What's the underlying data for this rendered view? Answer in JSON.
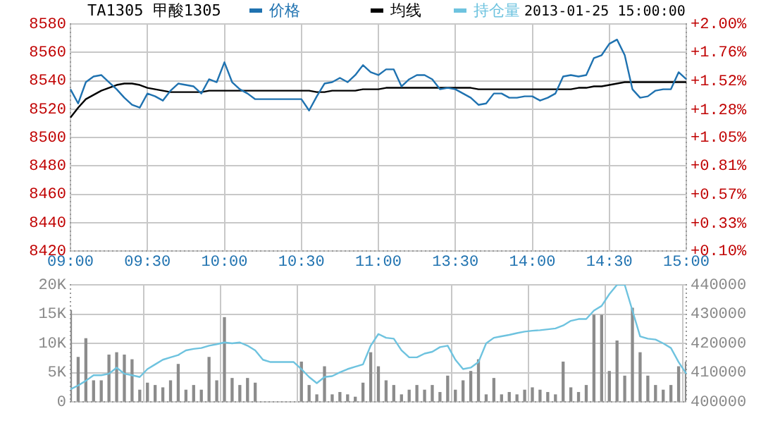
{
  "chart_data": [
    {
      "type": "line",
      "title": "TA1305 甲酸1305",
      "annotations": [
        "2013-01-25 15:00:00"
      ],
      "categories": [
        "09:00",
        null,
        null,
        null,
        null,
        null,
        null,
        null,
        null,
        null,
        "09:30",
        null,
        null,
        null,
        null,
        null,
        null,
        null,
        null,
        null,
        "10:00",
        null,
        null,
        null,
        null,
        null,
        null,
        null,
        null,
        null,
        "10:30",
        null,
        null,
        null,
        null,
        null,
        null,
        null,
        null,
        null,
        "11:00",
        null,
        null,
        null,
        null,
        null,
        null,
        null,
        null,
        null,
        "13:30",
        null,
        null,
        null,
        null,
        null,
        null,
        null,
        null,
        null,
        "14:00",
        null,
        null,
        null,
        null,
        null,
        null,
        null,
        null,
        null,
        "14:30",
        null,
        null,
        null,
        null,
        null,
        null,
        null,
        null,
        null,
        "15:00"
      ],
      "series": [
        {
          "name": "价格",
          "color": "#1f72b0",
          "values": [
            8534,
            8524,
            8539,
            8543,
            8544,
            8539,
            8534,
            8528,
            8523,
            8521,
            8531,
            8529,
            8526,
            8533,
            8538,
            8537,
            8536,
            8531,
            8541,
            8539,
            8553,
            8539,
            8534,
            8531,
            8527,
            8527,
            8527,
            8527,
            8527,
            8527,
            8527,
            8519,
            8529,
            8538,
            8539,
            8542,
            8539,
            8544,
            8551,
            8546,
            8544,
            8548,
            8548,
            8536,
            8541,
            8544,
            8544,
            8541,
            8534,
            8535,
            8534,
            8531,
            8528,
            8523,
            8524,
            8531,
            8531,
            8528,
            8528,
            8529,
            8529,
            8526,
            8528,
            8531,
            8543,
            8544,
            8543,
            8544,
            8556,
            8558,
            8566,
            8569,
            8558,
            8534,
            8528,
            8529,
            8533,
            8534,
            8534,
            8546,
            8541
          ]
        },
        {
          "name": "均线",
          "color": "#000000",
          "values": [
            8514,
            8521,
            8527,
            8530,
            8533,
            8535,
            8537,
            8538,
            8538,
            8537,
            8535,
            8534,
            8533,
            8532,
            8532,
            8532,
            8532,
            8532,
            8533,
            8533,
            8533,
            8533,
            8533,
            8533,
            8533,
            8533,
            8533,
            8533,
            8533,
            8533,
            8533,
            8533,
            8532,
            8532,
            8533,
            8533,
            8533,
            8533,
            8534,
            8534,
            8534,
            8535,
            8535,
            8535,
            8535,
            8535,
            8535,
            8535,
            8535,
            8535,
            8535,
            8535,
            8535,
            8534,
            8534,
            8534,
            8534,
            8534,
            8534,
            8534,
            8534,
            8534,
            8534,
            8534,
            8534,
            8534,
            8535,
            8535,
            8536,
            8536,
            8537,
            8538,
            8539,
            8539,
            8539,
            8539,
            8539,
            8539,
            8539,
            8539,
            8539
          ]
        }
      ],
      "ylim": [
        8420,
        8580
      ],
      "yticks": [
        8420,
        8440,
        8460,
        8480,
        8500,
        8520,
        8540,
        8560,
        8580
      ],
      "y2lim": [
        0.1,
        2.0
      ],
      "y2ticks": [
        {
          "value": 0.1,
          "label": "+0.10%"
        },
        {
          "value": 0.33,
          "label": "+0.33%"
        },
        {
          "value": 0.57,
          "label": "+0.57%"
        },
        {
          "value": 0.81,
          "label": "+0.81%"
        },
        {
          "value": 1.05,
          "label": "+1.05%"
        },
        {
          "value": 1.28,
          "label": "+1.28%"
        },
        {
          "value": 1.52,
          "label": "+1.52%"
        },
        {
          "value": 1.76,
          "label": "+1.76%"
        },
        {
          "value": 2.0,
          "label": "+2.00%"
        }
      ],
      "grid": true,
      "legend": "top"
    },
    {
      "type": "bar",
      "tick_labels": "y",
      "categories": [
        null,
        null,
        null,
        null,
        null,
        null,
        null,
        null,
        null,
        null,
        null,
        null,
        null,
        null,
        null,
        null,
        null,
        null,
        null,
        null,
        null,
        null,
        null,
        null,
        null,
        null,
        null,
        null,
        null,
        null,
        null,
        null,
        null,
        null,
        null,
        null,
        null,
        null,
        null,
        null,
        null,
        null,
        null,
        null,
        null,
        null,
        null,
        null,
        null,
        null,
        null,
        null,
        null,
        null,
        null,
        null,
        null,
        null,
        null,
        null,
        null,
        null,
        null,
        null,
        null,
        null,
        null,
        null,
        null,
        null,
        null,
        null,
        null,
        null,
        null,
        null,
        null,
        null,
        null,
        null,
        null
      ],
      "series": [
        {
          "color": "#8c8c8c",
          "values": [
            15600,
            7600,
            10800,
            3600,
            3600,
            8000,
            8400,
            8000,
            7200,
            2000,
            3200,
            2800,
            2400,
            3600,
            6400,
            2000,
            2800,
            2000,
            7600,
            3600,
            14400,
            4000,
            2800,
            4000,
            3200,
            null,
            null,
            null,
            null,
            null,
            6800,
            2800,
            1200,
            6000,
            1200,
            1600,
            1200,
            800,
            3200,
            8400,
            6000,
            3600,
            2800,
            1200,
            2000,
            2800,
            2000,
            2800,
            1600,
            4400,
            2000,
            3600,
            5200,
            7200,
            1200,
            4000,
            1200,
            1600,
            1200,
            2000,
            2400,
            2000,
            1600,
            1200,
            6800,
            2400,
            1600,
            2800,
            14800,
            14800,
            5200,
            10400,
            4400,
            16000,
            8400,
            4400,
            2800,
            2000,
            2800,
            6000,
            6800
          ]
        },
        {
          "name": "持仓量",
          "type": "line",
          "axis": "y2",
          "color": "#6ec3df",
          "values": [
            404300,
            405600,
            407200,
            409100,
            409100,
            409600,
            411700,
            409600,
            409100,
            408500,
            411200,
            412800,
            414400,
            415200,
            416000,
            417600,
            418100,
            418400,
            419200,
            419700,
            420300,
            420000,
            420300,
            419200,
            417600,
            414400,
            413600,
            413600,
            413600,
            413600,
            411200,
            408500,
            406400,
            408500,
            408800,
            410100,
            411200,
            412000,
            412800,
            419200,
            423200,
            421900,
            421600,
            417600,
            415200,
            415200,
            416500,
            417100,
            418700,
            419200,
            414400,
            411200,
            411700,
            413600,
            420000,
            421900,
            422400,
            422900,
            423500,
            424000,
            424300,
            424500,
            424800,
            425100,
            426100,
            427700,
            428300,
            428300,
            431200,
            432800,
            436800,
            440000,
            440000,
            431200,
            422400,
            421600,
            421300,
            420000,
            418400,
            413600,
            409600
          ]
        }
      ],
      "ylim": [
        0,
        20000
      ],
      "yticks": [
        0,
        {
          "value": 5000,
          "label": "5K"
        },
        {
          "value": 10000,
          "label": "10K"
        },
        {
          "value": 15000,
          "label": "15K"
        },
        {
          "value": 20000,
          "label": "20K"
        }
      ],
      "y2lim": [
        400000,
        440000
      ],
      "y2ticks": [
        400000,
        410000,
        420000,
        430000,
        440000
      ],
      "grid": true,
      "legend": "top"
    }
  ]
}
